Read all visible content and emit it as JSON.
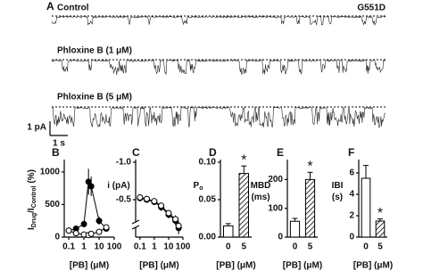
{
  "traces": {
    "panel": "A",
    "mutant": "G551D",
    "labels": [
      "Control",
      "Phloxine B (1 μM)",
      "Phloxine B (5 μM)"
    ],
    "scale_current": "1 pA",
    "scale_time": "1 s"
  },
  "chart_data": [
    {
      "type": "scatter",
      "panel": "B",
      "ylabel": [
        {
          "text": "I"
        },
        {
          "text": "Drug",
          "sub": true
        },
        {
          "text": "/I"
        },
        {
          "text": "Control",
          "sub": true
        },
        {
          "text": " (%)"
        }
      ],
      "ylabel_rotated": true,
      "xlabel": "[PB] (μM)",
      "xlog": true,
      "x": [
        0.1,
        0.3,
        1,
        2,
        3,
        10,
        30
      ],
      "series": [
        {
          "fill": "#000000",
          "values": [
            100,
            130,
            200,
            850,
            780,
            250,
            130
          ],
          "errors": [
            10,
            20,
            50,
            200,
            150,
            60,
            20
          ]
        },
        {
          "fill": "#ffffff",
          "values": [
            100,
            60,
            40,
            30,
            50,
            80,
            150
          ],
          "errors": [
            10,
            10,
            10,
            10,
            15,
            20,
            30
          ]
        }
      ],
      "xlim": [
        0.05,
        100
      ],
      "xticks": [
        0.1,
        1,
        10,
        100
      ],
      "ylim": [
        0,
        1150
      ],
      "yticks": [
        0,
        500,
        1000
      ]
    },
    {
      "type": "scatter",
      "panel": "C",
      "ylabel": [
        {
          "text": "i (pA)"
        }
      ],
      "ylabel_rotated": false,
      "xlabel": "[PB] (μM)",
      "xlog": true,
      "x": [
        0.1,
        0.3,
        1,
        3,
        10,
        30,
        50
      ],
      "series": [
        {
          "fill": "#000000",
          "values": [
            -0.52,
            -0.5,
            -0.47,
            -0.4,
            -0.3,
            -0.22,
            -0.12
          ],
          "errors": [
            0.04,
            0.04,
            0.04,
            0.05,
            0.05,
            0.06,
            0.08
          ]
        },
        {
          "fill": "#ffffff",
          "values": [
            -0.53,
            -0.51,
            -0.48,
            -0.42,
            -0.32,
            -0.24,
            -0.15
          ],
          "errors": [
            0.03,
            0.03,
            0.03,
            0.04,
            0.04,
            0.05,
            0.06
          ]
        }
      ],
      "xlim": [
        0.05,
        100
      ],
      "xticks": [
        0.1,
        1,
        10,
        100
      ],
      "ylim": [
        0,
        -1
      ],
      "yticks": [
        {
          "value": -1,
          "label": "-1.0"
        },
        -0.5
      ],
      "axis_break": true
    },
    {
      "type": "bar",
      "panel": "D",
      "ylabel": [
        {
          "text": "P"
        },
        {
          "text": "o",
          "sub": true
        }
      ],
      "xlabel": "[PB] (μM)",
      "categories": [
        "0",
        "5"
      ],
      "values": [
        0.015,
        0.085
      ],
      "errors": [
        0.003,
        0.01
      ],
      "hatch": [
        false,
        true
      ],
      "annotation": "*",
      "ylim": [
        0,
        0.1
      ],
      "yticks": [
        {
          "value": 0,
          "label": "0.00"
        },
        {
          "value": 0.05,
          "label": "0.05"
        },
        {
          "value": 0.1,
          "label": "0.10"
        }
      ]
    },
    {
      "type": "bar",
      "panel": "E",
      "ylabel": [
        {
          "text": "MBD"
        },
        {
          "text": "(ms)",
          "newline": true
        }
      ],
      "xlabel": "[PB] (μM)",
      "categories": [
        "0",
        "5"
      ],
      "values": [
        55,
        200
      ],
      "errors": [
        10,
        25
      ],
      "hatch": [
        false,
        true
      ],
      "annotation": "*",
      "ylim": [
        0,
        260
      ],
      "yticks": [
        0,
        100,
        200
      ]
    },
    {
      "type": "bar",
      "panel": "F",
      "ylabel": [
        {
          "text": "IBI"
        },
        {
          "text": "(s)",
          "newline": true
        }
      ],
      "xlabel": "[PB] (μM)",
      "categories": [
        "0",
        "5"
      ],
      "values": [
        5.5,
        1.5
      ],
      "errors": [
        1.2,
        0.2
      ],
      "hatch": [
        false,
        true
      ],
      "annotation": "*",
      "ylim": [
        0,
        7
      ],
      "yticks": [
        0,
        2,
        4,
        6
      ]
    }
  ]
}
